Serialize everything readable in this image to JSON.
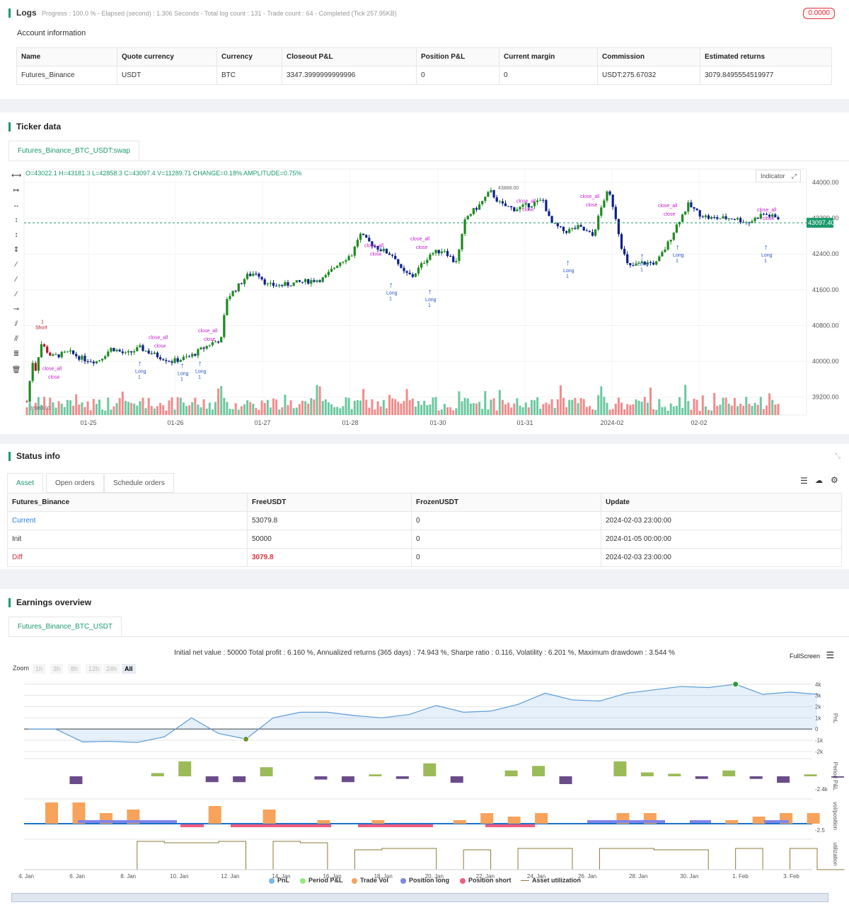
{
  "logs": {
    "title": "Logs",
    "summary": "Progress : 100.0 % - Elapsed (second) : 1.306  Seconds - Total log count : 131 - Trade count : 64 - Completed (Tick 257.95KB)",
    "badge": "0.0000"
  },
  "account": {
    "title": "Account information",
    "headers": [
      "Name",
      "Quote currency",
      "Currency",
      "Closeout P&L",
      "Position P&L",
      "Current margin",
      "Commission",
      "Estimated returns"
    ],
    "row": [
      "Futures_Binance",
      "USDT",
      "BTC",
      "3347.3999999999996",
      "0",
      "0",
      "USDT:275.67032",
      "3079.8495554519977"
    ]
  },
  "ticker": {
    "title": "Ticker data",
    "tab": "Futures_Binance_BTC_USDT:swap",
    "ohlc": "O=43022.1 H=43181.3 L=42858.3 C=43097.4 V=11289.71 CHANGE=0.18% AMPLITUDE=0.75%",
    "indicator_btn": "Indicator",
    "price_tag": "43097.40",
    "high_label": "43888.00",
    "low_label": "38963.00",
    "y_ticks": [
      "44000.00",
      "43200.00",
      "42400.00",
      "41600.00",
      "40800.00",
      "40000.00",
      "39200.00"
    ],
    "x_ticks": [
      "01-25",
      "01-26",
      "01-27",
      "01-28",
      "01-30",
      "01-31",
      "2024-02",
      "02-02"
    ],
    "colors": {
      "up": "#1e8a1e",
      "down": "#0d1f8c",
      "short": "#b2182b",
      "signal": "#c21ecc",
      "long_label": "#2a55c9"
    }
  },
  "status": {
    "title": "Status info",
    "tabs": [
      "Asset",
      "Open orders",
      "Schedule orders"
    ],
    "headers": [
      "Futures_Binance",
      "FreeUSDT",
      "FrozenUSDT",
      "Update"
    ],
    "rows": [
      [
        "Current",
        "53079.8",
        "0",
        "2024-02-03 23:00:00"
      ],
      [
        "Init",
        "50000",
        "0",
        "2024-01-05 00:00:00"
      ],
      [
        "Diff",
        "3079.8",
        "0",
        "2024-02-03 23:00:00"
      ]
    ]
  },
  "earnings": {
    "title": "Earnings overview",
    "tab": "Futures_Binance_BTC_USDT",
    "summary": "Initial net value : 50000 Total profit : 6.160 %, Annualized returns (365 days) : 74.943 %, Sharpe ratio : 0.116, Volatility : 6.201 %, Maximum drawdown : 3.544 %",
    "fullscreen": "FullScreen",
    "zoom_label": "Zoom",
    "zoom_options": [
      "1h",
      "3h",
      "8h",
      "12h",
      "24h",
      "All"
    ],
    "pnl_ticks": [
      "4k",
      "3k",
      "2k",
      "1k",
      "0",
      "-1k",
      "-2k"
    ],
    "period_tick": "-2.4k",
    "vol_tick": "-2.5",
    "axis_titles": [
      "PnL",
      "Period P&L",
      "vol/position",
      "utilization"
    ],
    "x_ticks": [
      "4. Jan",
      "6. Jan",
      "8. Jan",
      "10. Jan",
      "12. Jan",
      "14. Jan",
      "16. Jan",
      "18. Jan",
      "20. Jan",
      "22. Jan",
      "24. Jan",
      "26. Jan",
      "28. Jan",
      "30. Jan",
      "1. Feb",
      "3. Feb"
    ],
    "legend": [
      {
        "label": "PnL",
        "color": "#7cb5ec"
      },
      {
        "label": "Period P&L",
        "color": "#90ed7d"
      },
      {
        "label": "Trade Vol",
        "color": "#f7a35c"
      },
      {
        "label": "Position long",
        "color": "#8085e9"
      },
      {
        "label": "Position short",
        "color": "#f15c80"
      },
      {
        "label": "Asset utilization",
        "color": "#8b7a3a"
      }
    ],
    "pnl_series": [
      0,
      0,
      -1150,
      -1100,
      -1200,
      -700,
      1000,
      -400,
      -900,
      1000,
      1500,
      1500,
      1200,
      1000,
      1300,
      2100,
      1500,
      1600,
      2200,
      3200,
      2600,
      2500,
      3200,
      3500,
      3800,
      3700,
      4000,
      3100,
      3300,
      3100
    ],
    "period_series": [
      0,
      -1200,
      0,
      0,
      500,
      2300,
      -900,
      -900,
      1400,
      0,
      -500,
      -900,
      300,
      -400,
      2000,
      -1000,
      0,
      900,
      1600,
      -1200,
      0,
      2300,
      600,
      400,
      -400,
      900,
      -400,
      -1000,
      300,
      -200
    ],
    "trade_vol": [
      3,
      3,
      1.5,
      2,
      0,
      0,
      2.5,
      0,
      2,
      0,
      0.5,
      0,
      0.5,
      0,
      0,
      0.5,
      1.5,
      1,
      1.5,
      0,
      0,
      1.5,
      1.5,
      0,
      0,
      0.5,
      1,
      1.5,
      1.5,
      0
    ],
    "utilization": [
      0,
      0,
      0,
      0,
      1,
      0.95,
      0.95,
      1,
      0,
      1,
      0.95,
      0,
      0.7,
      0.75,
      0.75,
      0,
      0.7,
      0,
      0.75,
      0.75,
      0,
      0.75,
      0.75,
      0.7,
      0.7,
      0,
      0.75,
      0,
      0.75,
      0
    ]
  }
}
